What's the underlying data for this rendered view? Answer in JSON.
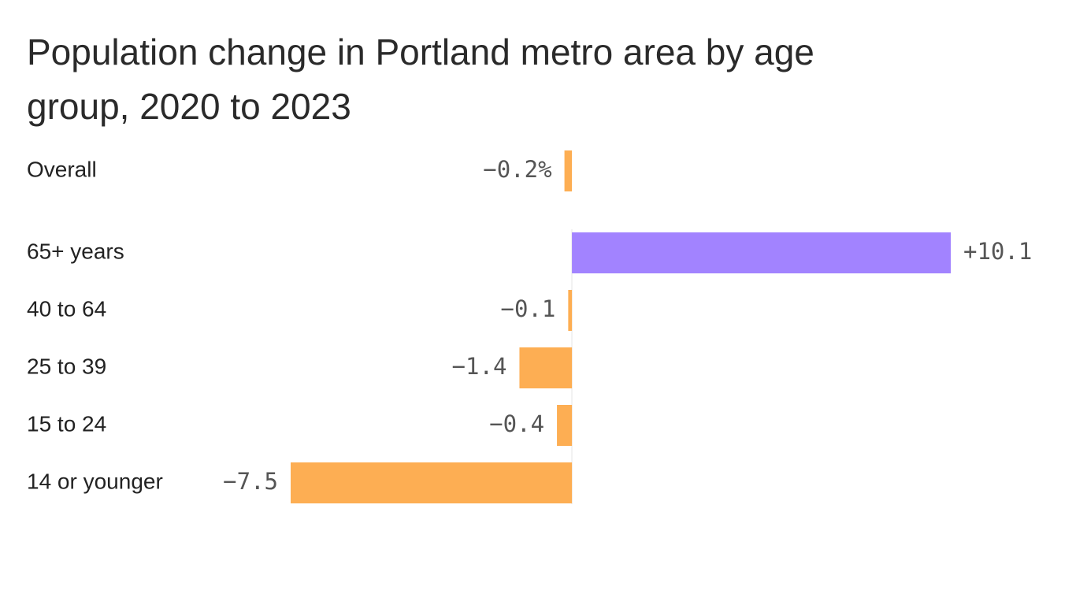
{
  "chart_data": {
    "type": "hbar",
    "title": "Population change in Portland metro area by age group, 2020 to 2023",
    "categories": [
      "Overall",
      "65+ years",
      "40 to 64",
      "25 to 39",
      "15 to 24",
      "14 or younger"
    ],
    "values": [
      -0.2,
      10.1,
      -0.1,
      -1.4,
      -0.4,
      -7.5
    ],
    "value_labels": [
      "−0.2%",
      "+10.1",
      "−0.1",
      "−1.4",
      "−0.4",
      "−7.5"
    ],
    "colors": [
      "#fdae53",
      "#a283ff",
      "#fdae53",
      "#fdae53",
      "#fdae53",
      "#fdae53"
    ]
  }
}
